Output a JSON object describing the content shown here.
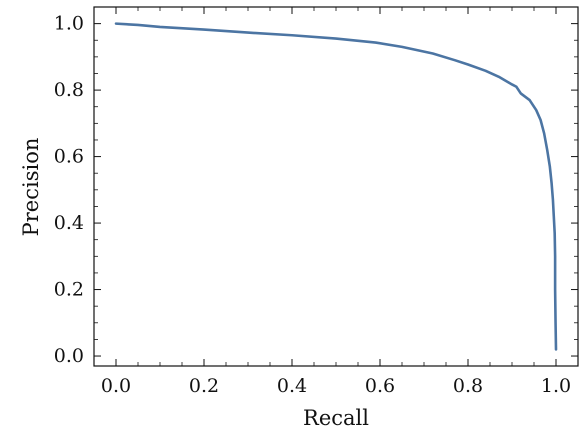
{
  "chart_data": {
    "type": "line",
    "title": "",
    "xlabel": "Recall",
    "ylabel": "Precision",
    "xlim": [
      -0.05,
      1.05
    ],
    "ylim": [
      -0.03,
      1.05
    ],
    "grid": false,
    "x_ticks": [
      0.0,
      0.2,
      0.4,
      0.6,
      0.8,
      1.0
    ],
    "y_ticks": [
      0.0,
      0.2,
      0.4,
      0.6,
      0.8,
      1.0
    ],
    "x_tick_labels": [
      "0.0",
      "0.2",
      "0.4",
      "0.6",
      "0.8",
      "1.0"
    ],
    "y_tick_labels": [
      "0.0",
      "0.2",
      "0.4",
      "0.6",
      "0.8",
      "1.0"
    ],
    "series": [
      {
        "color": "#4c75a3",
        "x": [
          0.0,
          0.05,
          0.1,
          0.2,
          0.3,
          0.4,
          0.5,
          0.59,
          0.65,
          0.72,
          0.77,
          0.8,
          0.84,
          0.87,
          0.9,
          0.91,
          0.92,
          0.94,
          0.955,
          0.965,
          0.973,
          0.98,
          0.986,
          0.99,
          0.993,
          0.995,
          0.997,
          0.998,
          0.998,
          0.999,
          1.0
        ],
        "y": [
          1.0,
          0.996,
          0.99,
          0.982,
          0.973,
          0.965,
          0.955,
          0.943,
          0.93,
          0.91,
          0.89,
          0.877,
          0.858,
          0.84,
          0.817,
          0.81,
          0.79,
          0.77,
          0.74,
          0.71,
          0.67,
          0.62,
          0.57,
          0.52,
          0.47,
          0.42,
          0.37,
          0.3,
          0.2,
          0.1,
          0.02
        ]
      }
    ]
  }
}
